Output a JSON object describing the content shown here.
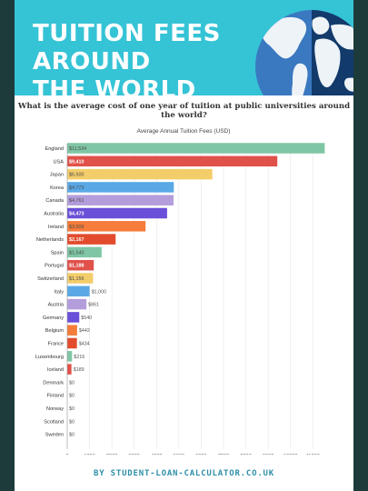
{
  "header": {
    "title_line1": "TUITION FEES AROUND",
    "title_line2": "THE WORLD",
    "colors": {
      "background": "#35c3d6",
      "ocean_light": "#3a78c0",
      "ocean_dark": "#123a6b",
      "land": "#eef3f7"
    }
  },
  "question": "What is the average cost of one year of tuition at public universities around the world?",
  "chart_data": {
    "type": "bar",
    "orientation": "horizontal",
    "title": "Average Annual Tuition Fees (USD)",
    "categories": [
      "England",
      "USA",
      "Japan",
      "Korea",
      "Canada",
      "Australia",
      "Ireland",
      "Netherlands",
      "Spain",
      "Portugal",
      "Switzerland",
      "Italy",
      "Austria",
      "Germany",
      "Belgium",
      "France",
      "Luxembourg",
      "Iceland",
      "Denmark",
      "Finland",
      "Norway",
      "Scotland",
      "Sweden"
    ],
    "values": [
      11534,
      9410,
      6500,
      4773,
      4761,
      4473,
      3509,
      2167,
      1540,
      1188,
      1156,
      1000,
      861,
      540,
      442,
      434,
      216,
      189,
      0,
      0,
      0,
      0,
      0
    ],
    "value_labels": [
      "$11,534",
      "$9,410",
      "$6,500",
      "$4,773",
      "$4,761",
      "$4,473",
      "$3,509",
      "$2,167",
      "$1,540",
      "$1,188",
      "$1,156",
      "$1,000",
      "$861",
      "$540",
      "$442",
      "$434",
      "$216",
      "$189",
      "$0",
      "$0",
      "$0",
      "$0",
      "$0"
    ],
    "colors": [
      "#7fc6a4",
      "#e0514a",
      "#f4cd6b",
      "#5aa9e6",
      "#b39ddb",
      "#6a4fd8",
      "#f57c3a",
      "#e24c2c",
      "#7fc6a4",
      "#e0514a",
      "#f4cd6b",
      "#5aa9e6",
      "#b39ddb",
      "#6a4fd8",
      "#f57c3a",
      "#e24c2c",
      "#7fc6a4",
      "#e0514a",
      "#f4cd6b",
      "#5aa9e6",
      "#b39ddb",
      "#6a4fd8",
      "#f57c3a"
    ],
    "xlim": [
      0,
      11600
    ],
    "xticks": [
      0,
      1000,
      2000,
      3000,
      4000,
      5000,
      6000,
      7000,
      8000,
      9000,
      10000,
      11000
    ],
    "xtick_labels": [
      "0",
      "1000",
      "2000",
      "3000",
      "4000",
      "5000",
      "6000",
      "7000",
      "8000",
      "9000",
      "10000",
      "11000"
    ],
    "grid": true
  },
  "footer": "BY STUDENT-LOAN-CALCULATOR.CO.UK"
}
